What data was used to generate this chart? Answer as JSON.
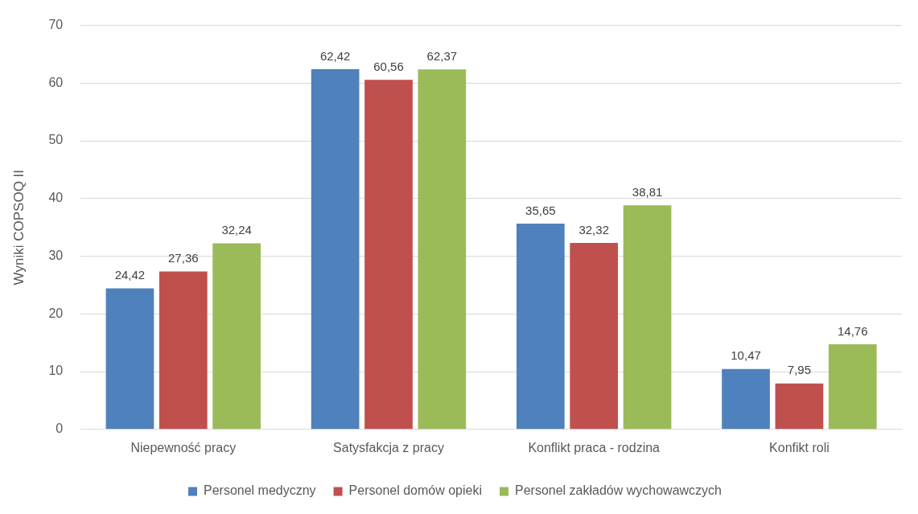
{
  "chart_data": {
    "type": "bar",
    "ylabel": "Wyniki COPSOQ II",
    "categories": [
      "Niepewność pracy",
      "Satysfakcja z pracy",
      "Konflikt praca - rodzina",
      "Konfikt roli"
    ],
    "series": [
      {
        "name": "Personel medyczny",
        "color": "#4f81bd",
        "values": [
          24.42,
          62.42,
          35.65,
          10.47
        ],
        "value_labels": [
          "24,42",
          "62,42",
          "35,65",
          "10,47"
        ]
      },
      {
        "name": "Personel domów opieki",
        "color": "#c0504d",
        "values": [
          27.36,
          60.56,
          32.32,
          7.95
        ],
        "value_labels": [
          "27,36",
          "60,56",
          "32,32",
          "7,95"
        ]
      },
      {
        "name": "Personel zakładów wychowawczych",
        "color": "#9bbb59",
        "values": [
          32.24,
          62.37,
          38.81,
          14.76
        ],
        "value_labels": [
          "32,24",
          "62,37",
          "38,81",
          "14,76"
        ]
      }
    ],
    "ylim": [
      0,
      70
    ],
    "yticks": [
      0,
      10,
      20,
      30,
      40,
      50,
      60,
      70
    ],
    "grid": "y",
    "legend": "bottom"
  }
}
